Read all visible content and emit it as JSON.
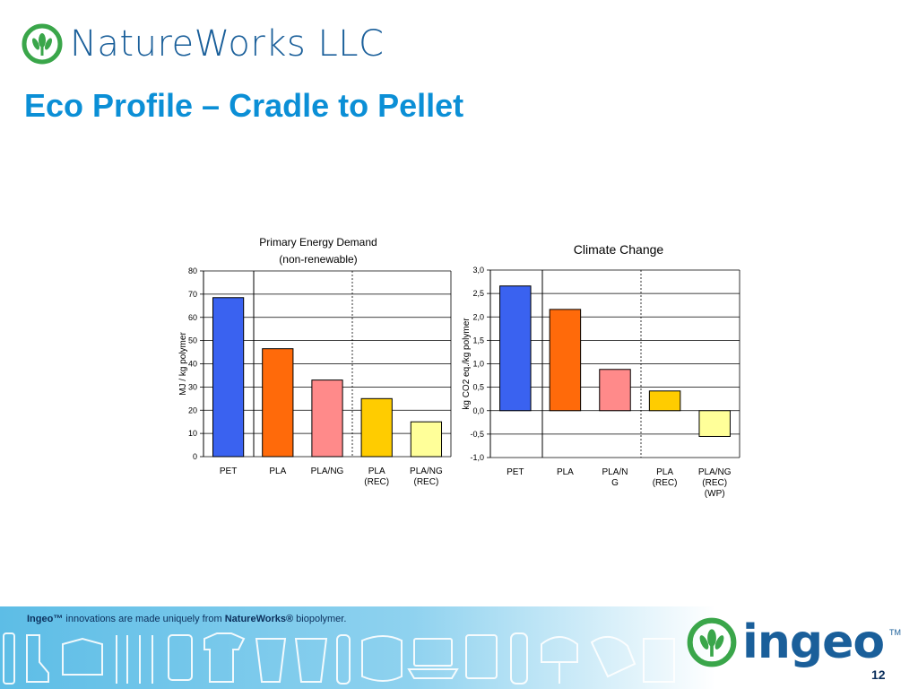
{
  "header": {
    "company": "NatureWorks LLC",
    "title": "Eco Profile – Cradle to Pellet"
  },
  "colors": {
    "brand_blue": "#1a5f9a",
    "title_blue": "#0b8fd6",
    "logo_green": "#3aa64a"
  },
  "chart_data": [
    {
      "type": "bar",
      "title_line1": "Primary Energy Demand",
      "title_line2": "(non-renewable)",
      "ylabel": "MJ / kg polymer",
      "ylim": [
        0,
        80
      ],
      "yticks": [
        "0",
        "10",
        "20",
        "30",
        "40",
        "50",
        "60",
        "70",
        "80"
      ],
      "categories": [
        [
          "PET"
        ],
        [
          "PLA"
        ],
        [
          "PLA/NG"
        ],
        [
          "PLA",
          "(REC)"
        ],
        [
          "PLA/NG",
          "(REC)"
        ]
      ],
      "values": [
        68.5,
        46.5,
        33,
        25,
        15
      ],
      "bar_colors": [
        "#3a62f0",
        "#ff6a0a",
        "#ff8a8a",
        "#ffcc00",
        "#ffff99"
      ],
      "grid": true
    },
    {
      "type": "bar",
      "title": "Climate Change",
      "ylabel": "kg CO2 eq./kg polymer",
      "ylim": [
        -1.0,
        3.0
      ],
      "yticks": [
        "-1,0",
        "-0,5",
        "0,0",
        "0,5",
        "1,0",
        "1,5",
        "2,0",
        "2,5",
        "3,0"
      ],
      "categories": [
        [
          "PET"
        ],
        [
          "PLA"
        ],
        [
          "PLA/N",
          "G"
        ],
        [
          "PLA",
          "(REC)"
        ],
        [
          "PLA/NG",
          "(REC)",
          "(WP)"
        ]
      ],
      "values": [
        2.66,
        2.16,
        0.88,
        0.42,
        -0.55
      ],
      "bar_colors": [
        "#3a62f0",
        "#ff6a0a",
        "#ff8a8a",
        "#ffcc00",
        "#ffff99"
      ],
      "grid": true
    }
  ],
  "footer": {
    "caption_brand": "Ingeo™",
    "caption_mid": " innovations are made uniquely from ",
    "caption_nw": "NatureWorks®",
    "caption_end": " biopolymer.",
    "ingeo_logo": "ingeo",
    "tm": "TM",
    "page_number": "12"
  }
}
